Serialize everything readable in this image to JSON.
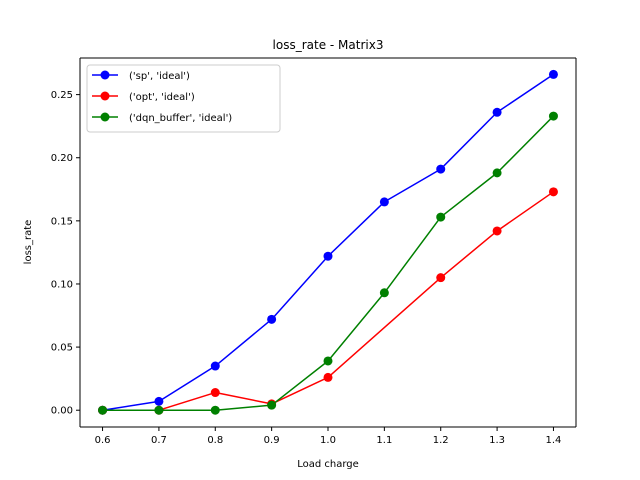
{
  "chart_data": {
    "type": "line",
    "title": "loss_rate - Matrix3",
    "xlabel": "Load charge",
    "ylabel": "loss_rate",
    "xlim": [
      0.56,
      1.44
    ],
    "ylim": [
      -0.0133,
      0.279
    ],
    "x": [
      0.6,
      0.7,
      0.8,
      0.9,
      1.0,
      1.1,
      1.2,
      1.3,
      1.4
    ],
    "xticks": [
      "0.6",
      "0.7",
      "0.8",
      "0.9",
      "1.0",
      "1.1",
      "1.2",
      "1.3",
      "1.4"
    ],
    "yticks": [
      "0.00",
      "0.05",
      "0.10",
      "0.15",
      "0.20",
      "0.25"
    ],
    "legend_position": "upper-left",
    "grid": false,
    "series": [
      {
        "name": "('sp', 'ideal')",
        "color": "#0000ff",
        "values": [
          0.0,
          0.007,
          0.035,
          0.072,
          0.122,
          0.165,
          0.191,
          0.236,
          0.266
        ]
      },
      {
        "name": "('opt', 'ideal')",
        "color": "#ff0000",
        "values": [
          0.0,
          0.0,
          0.014,
          0.005,
          0.026,
          null,
          0.105,
          0.142,
          0.173
        ]
      },
      {
        "name": "('dqn_buffer', 'ideal')",
        "color": "#008000",
        "values": [
          0.0,
          0.0,
          0.0,
          0.004,
          0.039,
          0.093,
          0.153,
          0.188,
          0.233
        ]
      }
    ]
  }
}
